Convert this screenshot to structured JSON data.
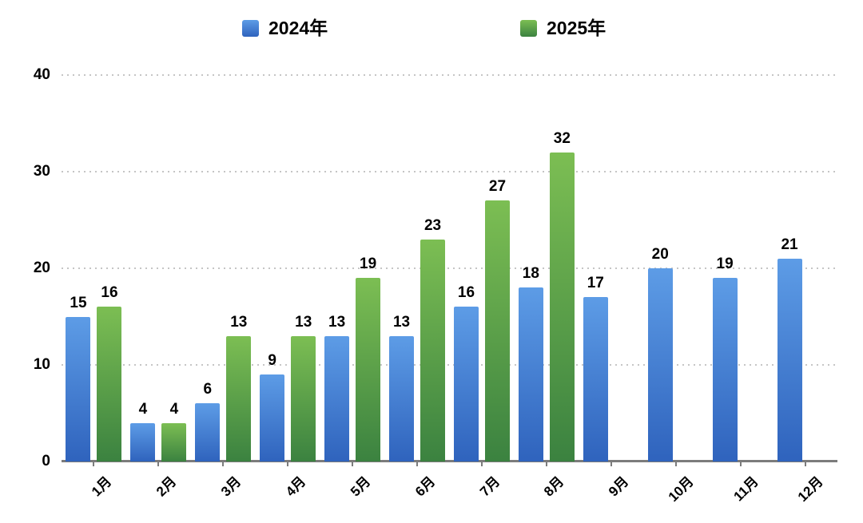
{
  "chart_data": {
    "type": "bar",
    "title": "",
    "xlabel": "",
    "ylabel": "",
    "categories": [
      "1月",
      "2月",
      "3月",
      "4月",
      "5月",
      "6月",
      "7月",
      "8月",
      "9月",
      "10月",
      "11月",
      "12月"
    ],
    "series": [
      {
        "name": "2024年",
        "values": [
          15,
          4,
          6,
          9,
          13,
          13,
          16,
          18,
          17,
          20,
          19,
          21
        ],
        "color_top": "#5d9ce6",
        "color_bottom": "#2f63bd"
      },
      {
        "name": "2025年",
        "values": [
          16,
          4,
          13,
          13,
          19,
          23,
          27,
          32,
          null,
          null,
          null,
          null
        ],
        "color_top": "#7cbe53",
        "color_bottom": "#3b8240"
      }
    ],
    "ylim": [
      0,
      40
    ],
    "yticks": [
      0,
      10,
      20,
      30,
      40
    ],
    "grid": "horizontal-dotted",
    "legend_position": "top",
    "bar_value_labels": true,
    "x_label_rotation_deg": -45
  },
  "colors": {
    "background": "#ffffff",
    "axis_line": "#7c7c7c",
    "gridline": "#c5c5c5",
    "text": "#000000"
  }
}
